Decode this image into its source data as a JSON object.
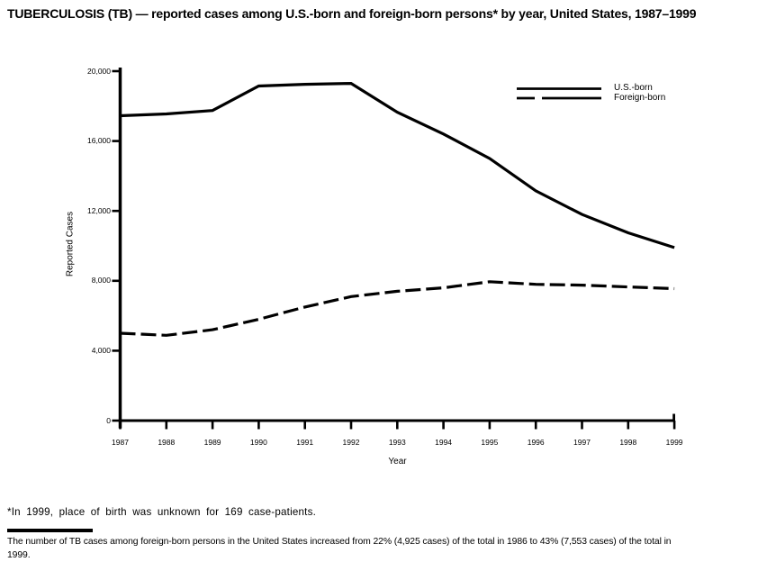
{
  "title": "TUBERCULOSIS (TB) — reported cases among U.S.-born and foreign-born persons* by year, United States, 1987–1999",
  "chart_data": {
    "type": "line",
    "x": [
      1987,
      1988,
      1989,
      1990,
      1991,
      1992,
      1993,
      1994,
      1995,
      1996,
      1997,
      1998,
      1999
    ],
    "series": [
      {
        "name": "U.S.-born",
        "line_style": "solid",
        "values": [
          17450,
          17550,
          17750,
          19150,
          19250,
          19300,
          17650,
          16400,
          15000,
          13150,
          11800,
          10750,
          9900
        ]
      },
      {
        "name": "Foreign-born",
        "line_style": "dashed",
        "values": [
          5000,
          4880,
          5200,
          5800,
          6500,
          7100,
          7400,
          7600,
          7950,
          7800,
          7750,
          7650,
          7550
        ]
      }
    ],
    "xlabel": "Year",
    "ylabel": "Reported Cases",
    "ylim": [
      0,
      20000
    ],
    "yticks": [
      0,
      4000,
      8000,
      12000,
      16000,
      20000
    ],
    "ytick_labels": [
      "0",
      "4,000",
      "8,000",
      "12,000",
      "16,000",
      "20,000"
    ],
    "xtick_labels": [
      "1987",
      "1988",
      "1989",
      "1990",
      "1991",
      "1992",
      "1993",
      "1994",
      "1995",
      "1996",
      "1997",
      "1998",
      "1999"
    ],
    "grid": false,
    "legend_position": "top-right",
    "line_color": "#000000",
    "background_color": "#ffffff"
  },
  "footnote": "*In 1999, place of birth was unknown for 169 case-patients.",
  "source_note": "The number of TB cases among foreign-born persons in the United States increased from 22% (4,925 cases) of the total in 1986 to 43% (7,553 cases) of the total in\n1999."
}
